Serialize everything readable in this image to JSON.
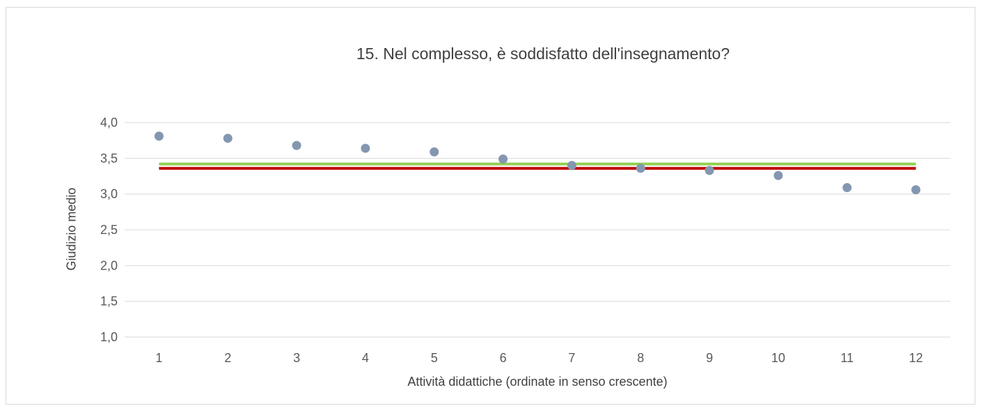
{
  "chart_data": {
    "type": "scatter",
    "title": "15. Nel complesso, è soddisfatto dell'insegnamento?",
    "xlabel": "Attività didattiche (ordinate in senso crescente)",
    "ylabel": "Giudizio medio",
    "x": [
      1,
      2,
      3,
      4,
      5,
      6,
      7,
      8,
      9,
      10,
      11,
      12
    ],
    "y": [
      3.81,
      3.78,
      3.68,
      3.64,
      3.59,
      3.49,
      3.4,
      3.36,
      3.33,
      3.26,
      3.09,
      3.06
    ],
    "ylim": [
      1.0,
      4.0
    ],
    "y_ticks": [
      "1,0",
      "1,5",
      "2,0",
      "2,5",
      "3,0",
      "3,5",
      "4,0"
    ],
    "y_tick_values": [
      1.0,
      1.5,
      2.0,
      2.5,
      3.0,
      3.5,
      4.0
    ],
    "x_ticks": [
      "1",
      "2",
      "3",
      "4",
      "5",
      "6",
      "7",
      "8",
      "9",
      "10",
      "11",
      "12"
    ],
    "reference_lines": [
      {
        "value": 3.42,
        "color": "#92d050"
      },
      {
        "value": 3.36,
        "color": "#c00000"
      }
    ],
    "point_color": "#8497b0",
    "grid": true,
    "legend": "none"
  }
}
